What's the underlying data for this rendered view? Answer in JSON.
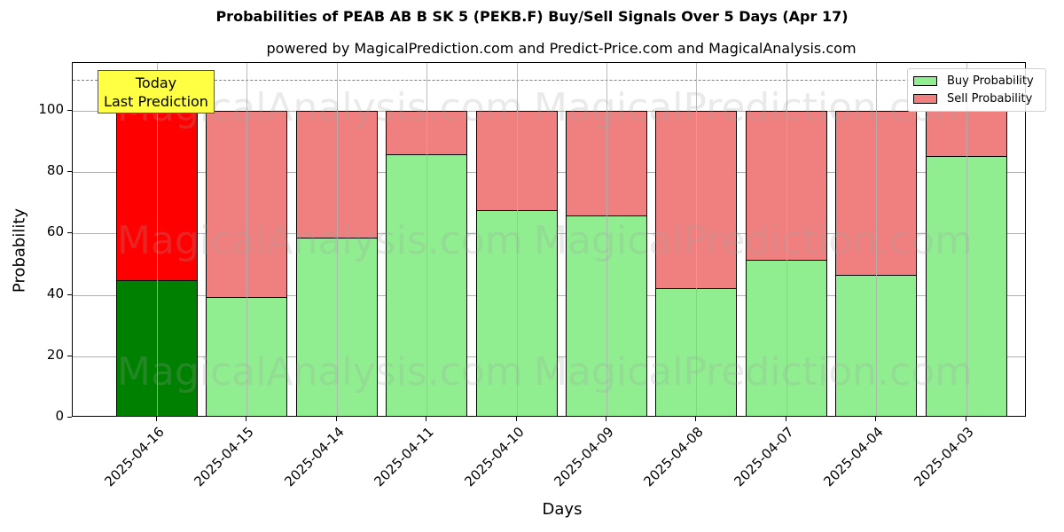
{
  "chart_data": {
    "type": "bar",
    "stacked": true,
    "title": "Probabilities of PEAB AB B  SK 5 (PEKB.F) Buy/Sell Signals Over 5 Days (Apr 17)",
    "subtitle": "powered by MagicalPrediction.com and Predict-Price.com and MagicalAnalysis.com",
    "xlabel": "Days",
    "ylabel": "Probability",
    "ylim": [
      0,
      115
    ],
    "yticks": [
      "0",
      "20",
      "40",
      "60",
      "80",
      "100"
    ],
    "grid": true,
    "legend_position": "upper right",
    "threshold_line": {
      "y": 110,
      "style": "dashed",
      "color": "#808080"
    },
    "categories": [
      "2025-04-16",
      "2025-04-15",
      "2025-04-14",
      "2025-04-11",
      "2025-04-10",
      "2025-04-09",
      "2025-04-08",
      "2025-04-07",
      "2025-04-04",
      "2025-04-03"
    ],
    "series": [
      {
        "name": "Buy Probability",
        "color": "#90ee90",
        "highlight_color": "#008000",
        "values": [
          44.8,
          39.3,
          58.7,
          85.8,
          67.6,
          65.9,
          42.2,
          51.4,
          46.5,
          85.3
        ]
      },
      {
        "name": "Sell Probability",
        "color": "#f08080",
        "highlight_color": "#ff0000",
        "values": [
          55.2,
          60.7,
          41.3,
          14.2,
          32.4,
          34.1,
          57.8,
          48.6,
          53.5,
          14.7
        ]
      }
    ],
    "annotation": {
      "line1": "Today",
      "line2": "Last Prediction",
      "target": "2025-04-16"
    },
    "watermarks": [
      "MagicalAnalysis.com",
      "MagicalPrediction.com"
    ]
  }
}
